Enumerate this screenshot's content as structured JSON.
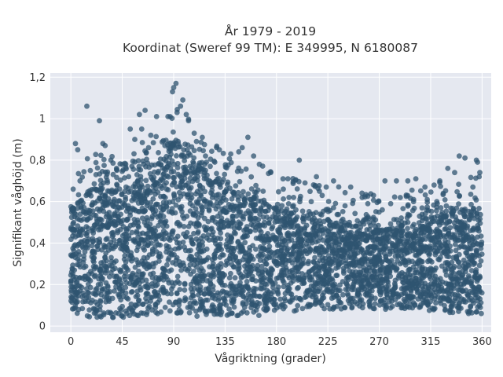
{
  "chart_data": {
    "type": "scatter",
    "title_line1": "År 1979 - 2019",
    "title_line2": "Koordinat (Sweref 99 TM): E 349995, N 6180087",
    "xlabel": "Vågriktning (grader)",
    "ylabel": "Signifikant våghöjd (m)",
    "xlim": [
      -18,
      368
    ],
    "ylim": [
      -0.03,
      1.22
    ],
    "x_ticks": [
      0,
      45,
      90,
      135,
      180,
      225,
      270,
      315,
      360
    ],
    "x_tick_labels": [
      "0",
      "45",
      "90",
      "135",
      "180",
      "225",
      "270",
      "315",
      "360"
    ],
    "y_ticks": [
      0,
      0.2,
      0.4,
      0.6,
      0.8,
      1.0,
      1.2
    ],
    "y_tick_labels": [
      "0",
      "0,2",
      "0,4",
      "0,6",
      "0,8",
      "1",
      "1,2"
    ],
    "grid": true,
    "point_color": "#2f5470",
    "background_color": "#e5e8f0",
    "envelope": {
      "x": [
        0,
        20,
        45,
        60,
        75,
        90,
        105,
        120,
        135,
        150,
        165,
        180,
        200,
        225,
        250,
        270,
        290,
        315,
        340,
        360
      ],
      "upper": [
        0.56,
        0.66,
        0.64,
        0.7,
        0.74,
        0.88,
        0.82,
        0.72,
        0.66,
        0.62,
        0.6,
        0.56,
        0.52,
        0.5,
        0.48,
        0.46,
        0.48,
        0.5,
        0.56,
        0.54
      ],
      "lower": [
        0.05,
        0.04,
        0.04,
        0.05,
        0.05,
        0.04,
        0.04,
        0.05,
        0.05,
        0.05,
        0.05,
        0.06,
        0.07,
        0.08,
        0.08,
        0.08,
        0.08,
        0.07,
        0.06,
        0.05
      ]
    },
    "outliers": [
      {
        "x": 92,
        "y": 1.17
      },
      {
        "x": 90,
        "y": 1.15
      },
      {
        "x": 89,
        "y": 1.13
      },
      {
        "x": 98,
        "y": 1.09
      },
      {
        "x": 96,
        "y": 1.06
      },
      {
        "x": 93,
        "y": 1.03
      },
      {
        "x": 101,
        "y": 1.02
      },
      {
        "x": 85,
        "y": 1.01
      },
      {
        "x": 103,
        "y": 0.99
      },
      {
        "x": 14,
        "y": 1.06
      },
      {
        "x": 65,
        "y": 1.04
      },
      {
        "x": 60,
        "y": 1.02
      },
      {
        "x": 75,
        "y": 1.01
      },
      {
        "x": 52,
        "y": 0.95
      },
      {
        "x": 25,
        "y": 0.99
      },
      {
        "x": 62,
        "y": 0.95
      },
      {
        "x": 56,
        "y": 0.9
      },
      {
        "x": 108,
        "y": 0.93
      },
      {
        "x": 110,
        "y": 0.89
      },
      {
        "x": 70,
        "y": 0.92
      },
      {
        "x": 4,
        "y": 0.88
      },
      {
        "x": 6,
        "y": 0.85
      },
      {
        "x": 28,
        "y": 0.88
      },
      {
        "x": 30,
        "y": 0.87
      },
      {
        "x": 155,
        "y": 0.91
      },
      {
        "x": 150,
        "y": 0.86
      },
      {
        "x": 140,
        "y": 0.83
      },
      {
        "x": 130,
        "y": 0.85
      },
      {
        "x": 147,
        "y": 0.84
      },
      {
        "x": 160,
        "y": 0.82
      },
      {
        "x": 165,
        "y": 0.78
      },
      {
        "x": 175,
        "y": 0.74
      },
      {
        "x": 190,
        "y": 0.71
      },
      {
        "x": 200,
        "y": 0.8
      },
      {
        "x": 205,
        "y": 0.69
      },
      {
        "x": 215,
        "y": 0.72
      },
      {
        "x": 230,
        "y": 0.7
      },
      {
        "x": 245,
        "y": 0.67
      },
      {
        "x": 255,
        "y": 0.62
      },
      {
        "x": 265,
        "y": 0.63
      },
      {
        "x": 275,
        "y": 0.7
      },
      {
        "x": 285,
        "y": 0.7
      },
      {
        "x": 295,
        "y": 0.7
      },
      {
        "x": 302,
        "y": 0.71
      },
      {
        "x": 310,
        "y": 0.67
      },
      {
        "x": 318,
        "y": 0.68
      },
      {
        "x": 323,
        "y": 0.7
      },
      {
        "x": 330,
        "y": 0.76
      },
      {
        "x": 336,
        "y": 0.74
      },
      {
        "x": 340,
        "y": 0.82
      },
      {
        "x": 345,
        "y": 0.81
      },
      {
        "x": 355,
        "y": 0.8
      },
      {
        "x": 356,
        "y": 0.79
      },
      {
        "x": 358,
        "y": 0.74
      },
      {
        "x": 352,
        "y": 0.67
      },
      {
        "x": 35,
        "y": 0.8
      },
      {
        "x": 40,
        "y": 0.76
      },
      {
        "x": 45,
        "y": 0.78
      },
      {
        "x": 122,
        "y": 0.77
      },
      {
        "x": 126,
        "y": 0.79
      },
      {
        "x": 186,
        "y": 0.66
      },
      {
        "x": 195,
        "y": 0.62
      },
      {
        "x": 220,
        "y": 0.63
      },
      {
        "x": 240,
        "y": 0.58
      },
      {
        "x": 260,
        "y": 0.59
      },
      {
        "x": 280,
        "y": 0.59
      },
      {
        "x": 300,
        "y": 0.6
      },
      {
        "x": 312,
        "y": 0.61
      },
      {
        "x": 326,
        "y": 0.64
      },
      {
        "x": 2,
        "y": 0.66
      },
      {
        "x": 8,
        "y": 0.7
      },
      {
        "x": 17,
        "y": 0.75
      },
      {
        "x": 22,
        "y": 0.73
      }
    ],
    "num_samples": 3600,
    "seed": 1979
  }
}
